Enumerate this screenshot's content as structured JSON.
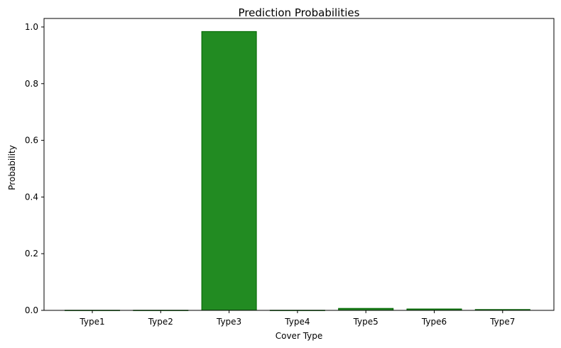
{
  "chart_data": {
    "type": "bar",
    "title": "Prediction Probabilities",
    "xlabel": "Cover Type",
    "ylabel": "Probability",
    "categories": [
      "Type1",
      "Type2",
      "Type3",
      "Type4",
      "Type5",
      "Type6",
      "Type7"
    ],
    "values": [
      0.0005,
      0.0005,
      0.984,
      0.0005,
      0.007,
      0.005,
      0.003
    ],
    "ylim": [
      0,
      1.03
    ],
    "yticks": [
      0.0,
      0.2,
      0.4,
      0.6,
      0.8,
      1.0
    ],
    "ytick_labels": [
      "0.0",
      "0.2",
      "0.4",
      "0.6",
      "0.8",
      "1.0"
    ],
    "grid": false,
    "bar_color": "#228b22",
    "bar_edge_color": "#006400"
  }
}
